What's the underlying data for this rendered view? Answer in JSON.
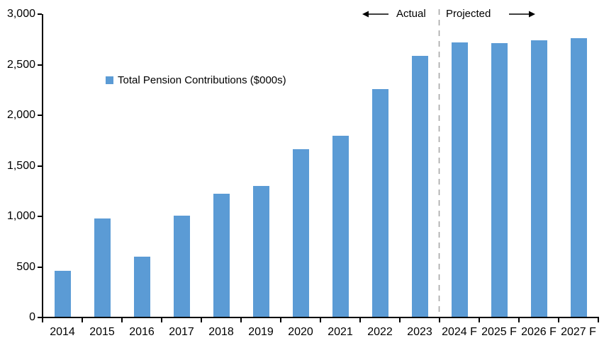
{
  "chart_data": {
    "type": "bar",
    "title": "",
    "legend": "Total Pension Contributions ($000s)",
    "categories": [
      "2014",
      "2015",
      "2016",
      "2017",
      "2018",
      "2019",
      "2020",
      "2021",
      "2022",
      "2023",
      "2024 F",
      "2025 F",
      "2026 F",
      "2027 F"
    ],
    "values": [
      465,
      980,
      600,
      1010,
      1225,
      1305,
      1665,
      1795,
      2260,
      2590,
      2725,
      2715,
      2740,
      2765
    ],
    "xlabel": "",
    "ylabel": "",
    "ylim": [
      0,
      3000
    ],
    "grid": false,
    "legend_position": "inside-upper-left",
    "y_ticks": [
      {
        "value": 0,
        "label": "0"
      },
      {
        "value": 500,
        "label": "500"
      },
      {
        "value": 1000,
        "label": "1,000"
      },
      {
        "value": 1500,
        "label": "1,500"
      },
      {
        "value": 2000,
        "label": "2,000"
      },
      {
        "value": 2500,
        "label": "2,500"
      },
      {
        "value": 3000,
        "label": "3,000"
      }
    ],
    "divider_after_category": "2023",
    "annotations": {
      "actual_label": "Actual",
      "projected_label": "Projected"
    },
    "colors": {
      "bar": "#5B9BD5",
      "axis": "#000000",
      "divider": "#A6A6A6",
      "text": "#000000"
    }
  }
}
